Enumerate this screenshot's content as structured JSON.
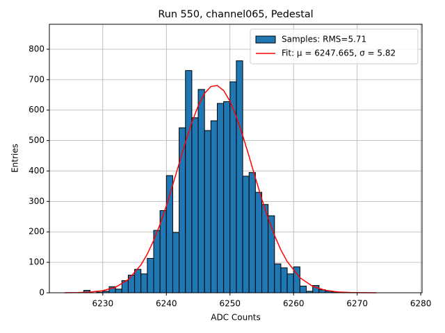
{
  "chart_data": {
    "type": "histogram",
    "title": "Run 550, channel065, Pedestal",
    "xlabel": "ADC Counts",
    "ylabel": "Entries",
    "bins": [
      6227,
      6228,
      6229,
      6230,
      6231,
      6232,
      6233,
      6234,
      6235,
      6236,
      6237,
      6238,
      6239,
      6240,
      6241,
      6242,
      6243,
      6244,
      6245,
      6246,
      6247,
      6248,
      6249,
      6250,
      6251,
      6252,
      6253,
      6254,
      6255,
      6256,
      6257,
      6258,
      6259,
      6260,
      6261,
      6262,
      6263,
      6264,
      6265,
      6266,
      6267,
      6268,
      6269
    ],
    "series": [
      {
        "name": "Samples: RMS=5.71",
        "color": "#1f77b4",
        "values": [
          8,
          0,
          2,
          5,
          20,
          12,
          40,
          58,
          77,
          62,
          113,
          205,
          270,
          385,
          198,
          542,
          730,
          575,
          668,
          533,
          565,
          622,
          628,
          693,
          762,
          383,
          395,
          330,
          290,
          253,
          95,
          82,
          62,
          85,
          22,
          5,
          24,
          10,
          5,
          3,
          2,
          1
        ]
      }
    ],
    "fit": {
      "name": "Fit: μ = 6247.665, σ = 5.82",
      "color": "#ff0000",
      "x": [
        6224,
        6226,
        6228,
        6230,
        6232,
        6234,
        6236,
        6237,
        6238,
        6239,
        6240,
        6241,
        6242,
        6243,
        6244,
        6245,
        6246,
        6247,
        6248,
        6249,
        6250,
        6251,
        6252,
        6253,
        6254,
        6255,
        6256,
        6257,
        6258,
        6259,
        6261,
        6263,
        6265,
        6267,
        6269,
        6271,
        6273
      ],
      "values": [
        0.18,
        0.67,
        2.3,
        6.8,
        18.2,
        43.3,
        91.5,
        127.3,
        171.8,
        225.1,
        286.5,
        354,
        424.7,
        494.7,
        559.3,
        614.1,
        654.7,
        677.6,
        680.9,
        664.3,
        629.3,
        578.7,
        516.8,
        448.1,
        377.1,
        308.3,
        244.6,
        188.4,
        140.9,
        102.4,
        49.4,
        21.2,
        8.1,
        2.7,
        0.8,
        0.2,
        0.05
      ]
    },
    "xlim": [
      6221.6,
      6280.2
    ],
    "ylim": [
      0,
      882
    ],
    "xticks": [
      6230,
      6240,
      6250,
      6260,
      6270,
      6280
    ],
    "yticks": [
      0,
      100,
      200,
      300,
      400,
      500,
      600,
      700,
      800
    ],
    "grid": true,
    "legend": "upper right"
  }
}
